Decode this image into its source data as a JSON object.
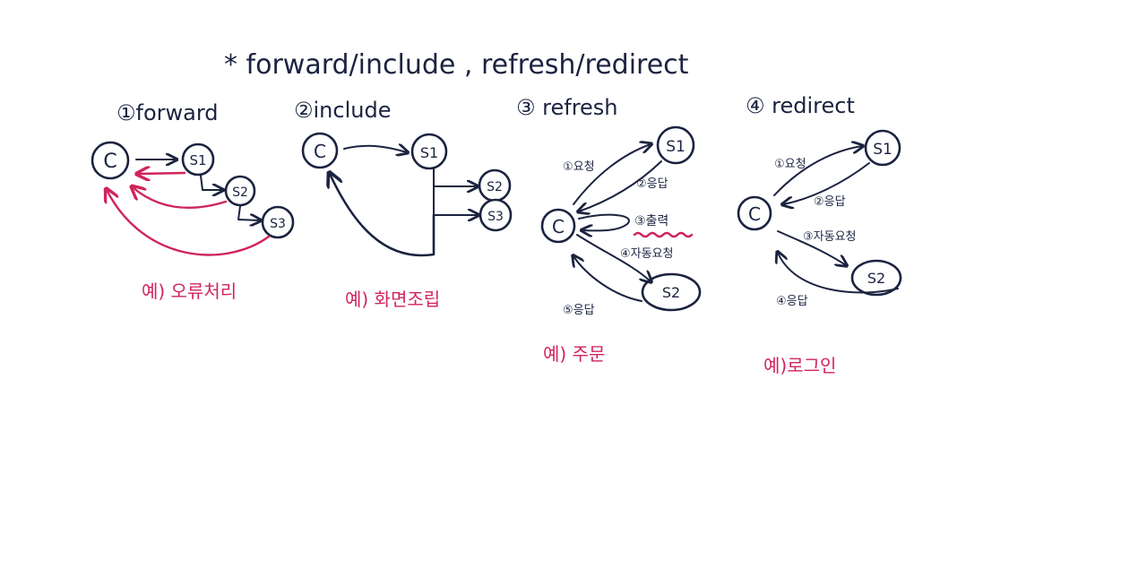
{
  "title": "* forward/include , refresh/redirect",
  "colors": {
    "ink": "#1b2340",
    "accent": "#d0245a"
  },
  "sections": {
    "forward": {
      "heading": "①forward",
      "nodes": {
        "c": "C",
        "s1": "S1",
        "s2": "S2",
        "s3": "S3"
      },
      "example": "예) 오류처리"
    },
    "include": {
      "heading": "②include",
      "nodes": {
        "c": "C",
        "s1": "S1",
        "s2": "S2",
        "s3": "S3"
      },
      "example": "예) 화면조립"
    },
    "refresh": {
      "heading": "③ refresh",
      "nodes": {
        "c": "C",
        "s1": "S1",
        "s2": "S2"
      },
      "steps": [
        "①요청",
        "②응답",
        "③출력",
        "④자동요청",
        "⑤응답"
      ],
      "example": "예) 주문"
    },
    "redirect": {
      "heading": "④ redirect",
      "nodes": {
        "c": "C",
        "s1": "S1",
        "s2": "S2"
      },
      "steps": [
        "①요청",
        "②응답",
        "③자동요청",
        "④응답"
      ],
      "example": "예)로그인"
    }
  }
}
